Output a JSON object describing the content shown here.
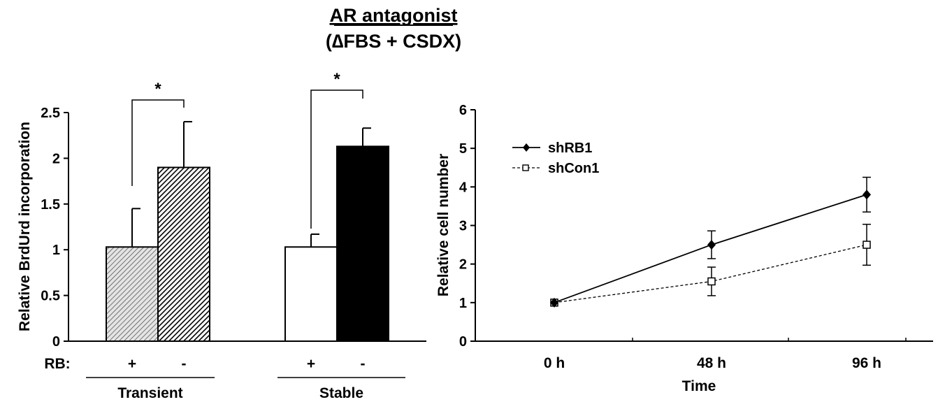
{
  "figure": {
    "title": "AR antagonist",
    "subtitle": "(∆FBS + CSDX)"
  },
  "chart_data": [
    {
      "type": "bar",
      "ylabel": "Relative BrdUrd incorporation",
      "ylim": [
        0,
        2.5
      ],
      "yticks": [
        0,
        0.5,
        1,
        1.5,
        2,
        2.5
      ],
      "ytick_labels": [
        "0",
        "0.5",
        "1",
        "1.5",
        "2",
        "2.5"
      ],
      "row_label": "RB:",
      "groups": [
        {
          "name": "Transient",
          "bars": [
            {
              "rb": "+",
              "value": 1.03,
              "error": 0.42,
              "fill": "light-hatch"
            },
            {
              "rb": "-",
              "value": 1.9,
              "error": 0.5,
              "fill": "dark-hatch"
            }
          ],
          "significance": "*"
        },
        {
          "name": "Stable",
          "bars": [
            {
              "rb": "+",
              "value": 1.03,
              "error": 0.14,
              "fill": "white"
            },
            {
              "rb": "-",
              "value": 2.13,
              "error": 0.2,
              "fill": "black"
            }
          ],
          "significance": "*"
        }
      ]
    },
    {
      "type": "line",
      "xlabel": "Time",
      "ylabel": "Relative cell number",
      "categories": [
        "0 h",
        "48 h",
        "96 h"
      ],
      "ylim": [
        0,
        6
      ],
      "yticks": [
        0,
        1,
        2,
        3,
        4,
        5,
        6
      ],
      "ytick_labels": [
        "0",
        "1",
        "2",
        "3",
        "4",
        "5",
        "6"
      ],
      "legend_position": "top-left",
      "series": [
        {
          "name": "shRB1",
          "values": [
            1.0,
            2.5,
            3.8
          ],
          "errors": [
            0.05,
            0.36,
            0.45
          ],
          "marker": "filled-diamond",
          "line": "solid"
        },
        {
          "name": "shCon1",
          "values": [
            1.0,
            1.55,
            2.5
          ],
          "errors": [
            0.05,
            0.37,
            0.53
          ],
          "marker": "open-square",
          "line": "dashed"
        }
      ]
    }
  ],
  "colors": {
    "ink": "#000000",
    "background": "#ffffff",
    "light_hatch_bg": "#e4e4e4",
    "dark_hatch_bg": "#555555"
  }
}
